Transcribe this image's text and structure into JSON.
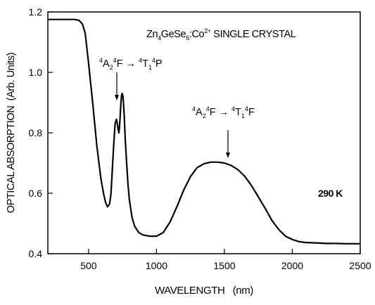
{
  "chart_data": {
    "type": "line",
    "title": "",
    "xlabel": "WAVELENGTH   (nm)",
    "ylabel": "OPTICAL ABSORPTION  (Arb. Units)",
    "xlim": [
      200,
      2500
    ],
    "ylim": [
      0.4,
      1.2
    ],
    "grid": false,
    "x_ticks": [
      {
        "value": 500,
        "label": "500"
      },
      {
        "value": 1000,
        "label": "1000"
      },
      {
        "value": 1500,
        "label": "1500"
      },
      {
        "value": 2000,
        "label": "2000"
      },
      {
        "value": 2500,
        "label": "2500"
      }
    ],
    "y_ticks": [
      {
        "value": 0.4,
        "label": "0.4"
      },
      {
        "value": 0.6,
        "label": "0.6"
      },
      {
        "value": 0.8,
        "label": "0.8"
      },
      {
        "value": 1.0,
        "label": "1.0"
      },
      {
        "value": 1.2,
        "label": "1.2"
      }
    ],
    "series": [
      {
        "name": "",
        "color": "#000000",
        "x": [
          200,
          300,
          400,
          430,
          455,
          475,
          500,
          530,
          560,
          590,
          610,
          625,
          640,
          655,
          665,
          675,
          685,
          695,
          705,
          712,
          718,
          723,
          728,
          733,
          738,
          743,
          748,
          753,
          758,
          763,
          770,
          780,
          790,
          800,
          820,
          840,
          870,
          900,
          950,
          1000,
          1050,
          1100,
          1150,
          1200,
          1250,
          1300,
          1350,
          1400,
          1450,
          1500,
          1550,
          1600,
          1650,
          1700,
          1750,
          1800,
          1850,
          1900,
          1950,
          2000,
          2050,
          2100,
          2150,
          2200,
          2250,
          2300,
          2400,
          2500
        ],
        "y": [
          1.175,
          1.175,
          1.175,
          1.172,
          1.16,
          1.13,
          1.03,
          0.9,
          0.76,
          0.65,
          0.6,
          0.57,
          0.555,
          0.565,
          0.6,
          0.68,
          0.76,
          0.83,
          0.845,
          0.83,
          0.81,
          0.8,
          0.82,
          0.86,
          0.9,
          0.925,
          0.93,
          0.92,
          0.89,
          0.85,
          0.78,
          0.7,
          0.63,
          0.58,
          0.52,
          0.49,
          0.47,
          0.462,
          0.458,
          0.458,
          0.47,
          0.505,
          0.555,
          0.61,
          0.655,
          0.685,
          0.698,
          0.703,
          0.703,
          0.7,
          0.692,
          0.678,
          0.656,
          0.625,
          0.588,
          0.55,
          0.51,
          0.48,
          0.458,
          0.447,
          0.44,
          0.437,
          0.436,
          0.435,
          0.434,
          0.434,
          0.433,
          0.433
        ]
      }
    ],
    "annotations": [
      {
        "text": "Zn4GeSe6:Co2+ SINGLE CRYSTAL"
      },
      {
        "text": "4A24F → 4T14P",
        "arrow_at": {
          "x": 705,
          "y": 0.845
        }
      },
      {
        "text": "4A24F → 4T14F",
        "arrow_at": {
          "x": 1540,
          "y": 0.705
        }
      },
      {
        "text": "290 K"
      }
    ]
  }
}
